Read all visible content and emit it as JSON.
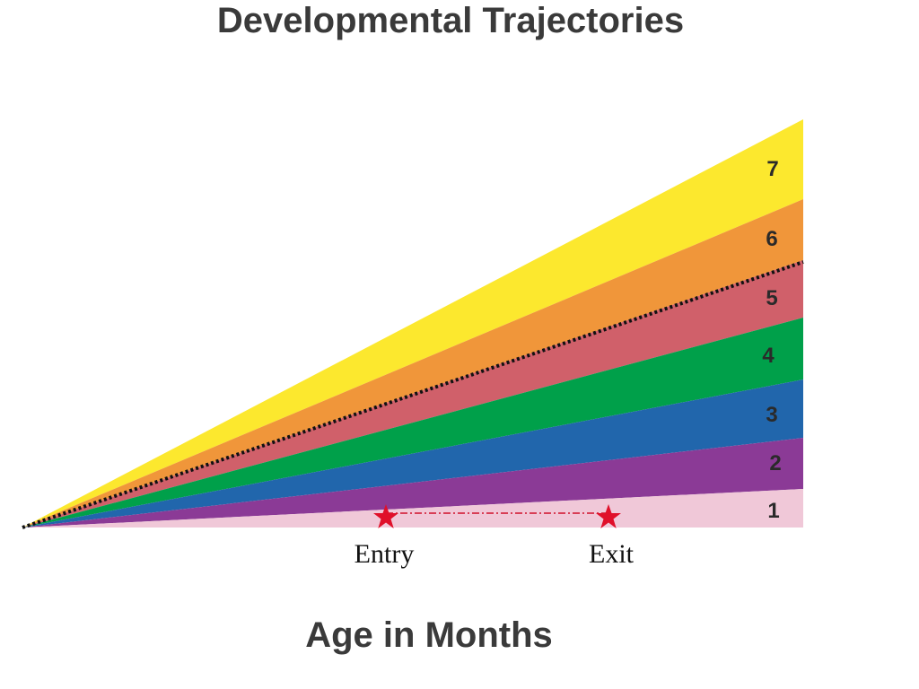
{
  "title": "Developmental Trajectories",
  "bands": [
    {
      "label": "1"
    },
    {
      "label": "2"
    },
    {
      "label": "3"
    },
    {
      "label": "4"
    },
    {
      "label": "5"
    },
    {
      "label": "6"
    },
    {
      "label": "7"
    }
  ],
  "markers": [
    {
      "label": "Entry"
    },
    {
      "label": "Exit"
    }
  ],
  "x_axis_label": "Age in Months"
}
